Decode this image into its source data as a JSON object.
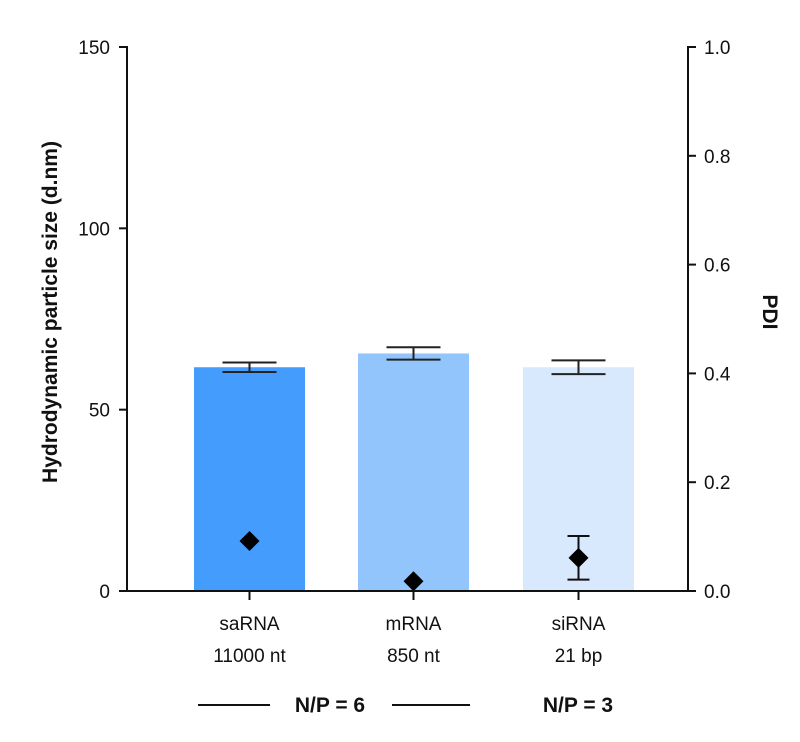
{
  "chart_data": {
    "type": "bar",
    "categories": [
      {
        "line1": "saRNA",
        "line2": "11000 nt"
      },
      {
        "line1": "mRNA",
        "line2": "850 nt"
      },
      {
        "line1": "siRNA",
        "line2": "21 bp"
      }
    ],
    "series": [
      {
        "axis": "left",
        "kind": "bar",
        "values": [
          61.7,
          65.5,
          61.7
        ],
        "errors": [
          1.3,
          1.7,
          1.9
        ],
        "colors": [
          "#449cfc",
          "#93c5fd",
          "#d8e9fd"
        ]
      },
      {
        "axis": "right",
        "kind": "point",
        "marker": "diamond",
        "values": [
          0.092,
          0.018,
          0.061
        ],
        "errors": [
          null,
          null,
          0.04
        ],
        "color": "#000000"
      }
    ],
    "ylabel": "Hydrodynamic particle size (d.nm)",
    "ylim": [
      0,
      150
    ],
    "yticks": [
      "0",
      "50",
      "100",
      "150"
    ],
    "y2label": "PDI",
    "y2lim": [
      0,
      1.0
    ],
    "y2ticks": [
      "0.0",
      "0.2",
      "0.4",
      "0.6",
      "0.8",
      "1.0"
    ],
    "grid": false,
    "groups": [
      {
        "label": "N/P = 6"
      },
      {
        "label": "N/P = 3"
      }
    ]
  }
}
